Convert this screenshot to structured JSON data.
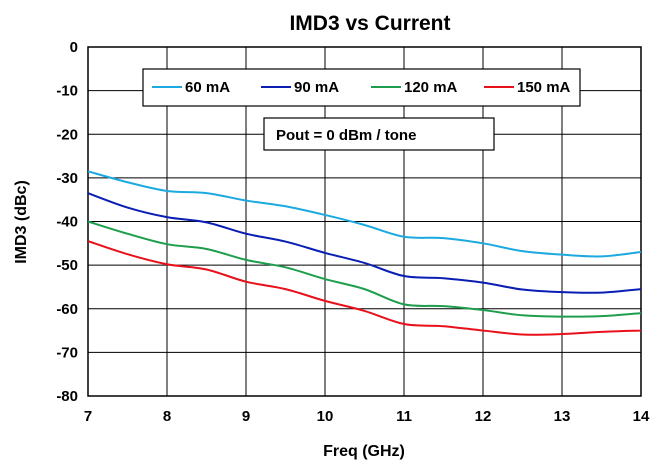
{
  "chart_data": {
    "type": "line",
    "title": "IMD3 vs Current",
    "xlabel": "Freq (GHz)",
    "ylabel": "IMD3 (dBc)",
    "xlim": [
      7,
      14
    ],
    "ylim": [
      -80,
      0
    ],
    "xticks": [
      7,
      8,
      9,
      10,
      11,
      12,
      13,
      14
    ],
    "yticks": [
      0,
      -10,
      -20,
      -30,
      -40,
      -50,
      -60,
      -70,
      -80
    ],
    "grid": true,
    "legend_position": "top",
    "annotation": "Pout = 0 dBm / tone",
    "series": [
      {
        "name": "60 mA",
        "color": "#1CA9E0",
        "x": [
          7,
          7.5,
          8,
          8.5,
          9,
          9.5,
          10,
          10.5,
          11,
          11.5,
          12,
          12.5,
          13,
          13.5,
          14
        ],
        "y": [
          -28.5,
          -31,
          -33,
          -33.5,
          -35.2,
          -36.5,
          -38.5,
          -40.8,
          -43.5,
          -43.8,
          -45,
          -46.8,
          -47.6,
          -48,
          -47
        ]
      },
      {
        "name": "90 mA",
        "color": "#0A1EB4",
        "x": [
          7,
          7.5,
          8,
          8.5,
          9,
          9.5,
          10,
          10.5,
          11,
          11.5,
          12,
          12.5,
          13,
          13.5,
          14
        ],
        "y": [
          -33.5,
          -36.8,
          -39,
          -40.2,
          -42.8,
          -44.6,
          -47.2,
          -49.5,
          -52.5,
          -53,
          -54,
          -55.6,
          -56.2,
          -56.3,
          -55.5
        ]
      },
      {
        "name": "120 mA",
        "color": "#1E9E4C",
        "x": [
          7,
          7.5,
          8,
          8.5,
          9,
          9.5,
          10,
          10.5,
          11,
          11.5,
          12,
          12.5,
          13,
          13.5,
          14
        ],
        "y": [
          -40,
          -42.8,
          -45.2,
          -46.3,
          -48.8,
          -50.5,
          -53.2,
          -55.5,
          -59,
          -59.4,
          -60.3,
          -61.5,
          -61.8,
          -61.7,
          -61
        ]
      },
      {
        "name": "150 mA",
        "color": "#E8101A",
        "x": [
          7,
          7.5,
          8,
          8.5,
          9,
          9.5,
          10,
          10.5,
          11,
          11.5,
          12,
          12.5,
          13,
          13.5,
          14
        ],
        "y": [
          -44.5,
          -47.5,
          -49.8,
          -51,
          -53.8,
          -55.5,
          -58.2,
          -60.5,
          -63.5,
          -64,
          -65,
          -65.9,
          -65.8,
          -65.3,
          -65
        ]
      }
    ]
  }
}
